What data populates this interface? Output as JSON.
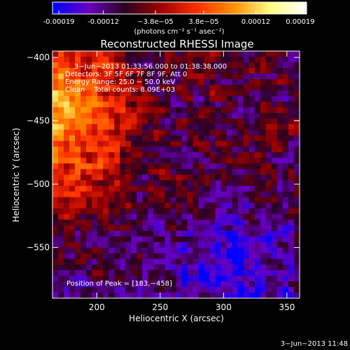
{
  "colorbar": {
    "ticks": [
      "-0.00019",
      "-0.00012",
      "−3.8e−05",
      "3.8e−05",
      "0.00012",
      "0.00019"
    ],
    "tick_values": [
      -0.00019,
      -0.00012,
      -3.8e-05,
      3.8e-05,
      0.00012,
      0.00019
    ],
    "range": [
      -0.0002,
      0.0002
    ],
    "unit_label": "(photons cm⁻² s⁻¹ asec⁻²)",
    "colormap": [
      "#0000ff",
      "#6a00c0",
      "#2a0020",
      "#a00000",
      "#ff3000",
      "#ff9000",
      "#ffff80",
      "#ffffff"
    ]
  },
  "plot": {
    "title": "Reconstructed RHESSI Image",
    "info_lines": [
      "3−Jun−2013 01:33:56.000 to 01:38:38.000",
      "Detectors: 3F 5F 6F 7F 8F 9F, Att 0",
      "Energy Range: 25.0 − 50.0 keV",
      "Clean    Total counts: 8.09E+03"
    ],
    "peak_label": "Position of Peak = [183,−458]",
    "date_stamp": "3−Jun−2013 11:48"
  },
  "chart_data": {
    "type": "heatmap",
    "title": "Reconstructed RHESSI Image",
    "xlabel": "Heliocentric X (arcsec)",
    "ylabel": "Heliocentric Y (arcsec)",
    "xlim": [
      165,
      360
    ],
    "ylim": [
      -590,
      -395
    ],
    "xticks": [
      200,
      250,
      300,
      350
    ],
    "yticks": [
      -400,
      -450,
      -500,
      -550
    ],
    "peak": [
      183,
      -458
    ],
    "colorbar_range": [
      -0.00019,
      0.00019
    ]
  }
}
